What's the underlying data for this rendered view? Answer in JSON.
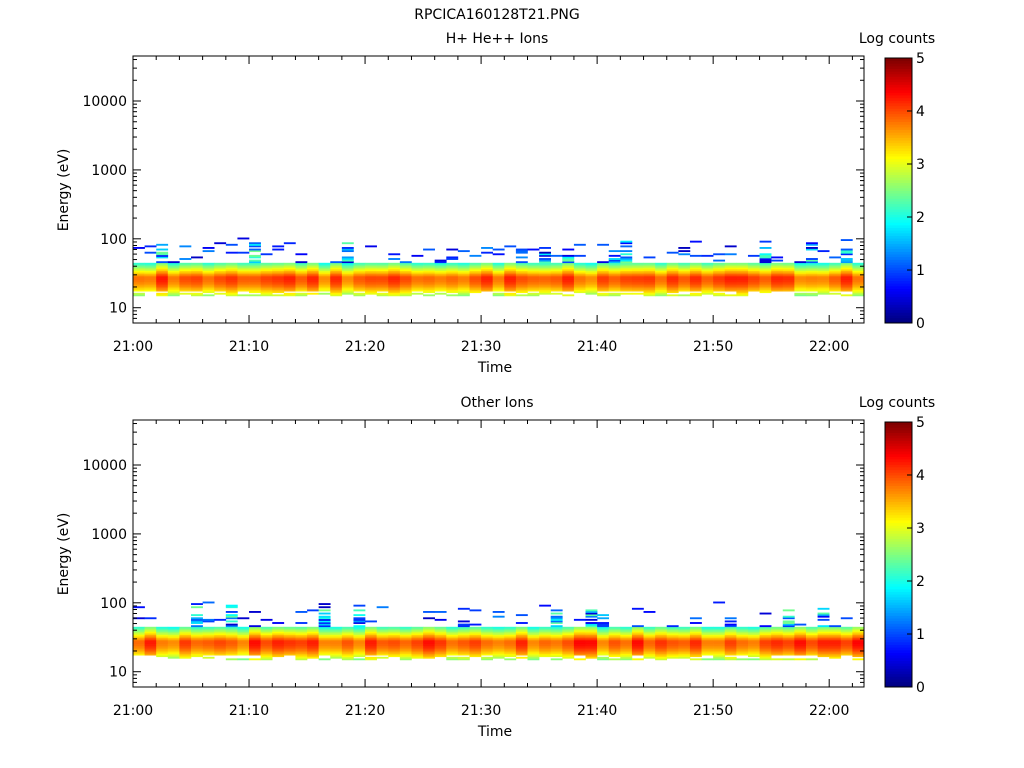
{
  "figure": {
    "title": "RPCICA160128T21.PNG"
  },
  "chart_data": [
    {
      "type": "heatmap",
      "title": "H+ He++ Ions",
      "xlabel": "Time",
      "ylabel": "Energy (eV)",
      "x_ticks": [
        "21:00",
        "21:10",
        "21:20",
        "21:30",
        "21:40",
        "21:50",
        "22:00"
      ],
      "x_range": [
        "21:00",
        "22:03"
      ],
      "y_scale": "log",
      "y_ticks": [
        10,
        100,
        1000,
        10000
      ],
      "ylim": [
        6,
        45000
      ],
      "colorbar": {
        "label": "Log counts",
        "range": [
          0,
          5
        ],
        "ticks": [
          "0",
          "1",
          "2",
          "3",
          "4",
          "5"
        ]
      },
      "spectrum": {
        "peak_energy_eV": [
          27,
          29
        ],
        "peak_log_counts": [
          3.7,
          4.3
        ],
        "main_band_eV": [
          16,
          45
        ],
        "sparse_band_eV": [
          45,
          100
        ],
        "description_band_energy_min_eV": 15
      }
    },
    {
      "type": "heatmap",
      "title": "Other Ions",
      "xlabel": "Time",
      "ylabel": "Energy (eV)",
      "x_ticks": [
        "21:00",
        "21:10",
        "21:20",
        "21:30",
        "21:40",
        "21:50",
        "22:00"
      ],
      "x_range": [
        "21:00",
        "22:03"
      ],
      "y_scale": "log",
      "y_ticks": [
        10,
        100,
        1000,
        10000
      ],
      "ylim": [
        6,
        45000
      ],
      "colorbar": {
        "label": "Log counts",
        "range": [
          0,
          5
        ],
        "ticks": [
          "0",
          "1",
          "2",
          "3",
          "4",
          "5"
        ]
      },
      "spectrum": {
        "peak_energy_eV": [
          27,
          29
        ],
        "peak_log_counts": [
          3.7,
          4.4
        ],
        "main_band_eV": [
          16,
          45
        ],
        "sparse_band_eV": [
          45,
          100
        ],
        "description_band_energy_min_eV": 15
      }
    }
  ]
}
